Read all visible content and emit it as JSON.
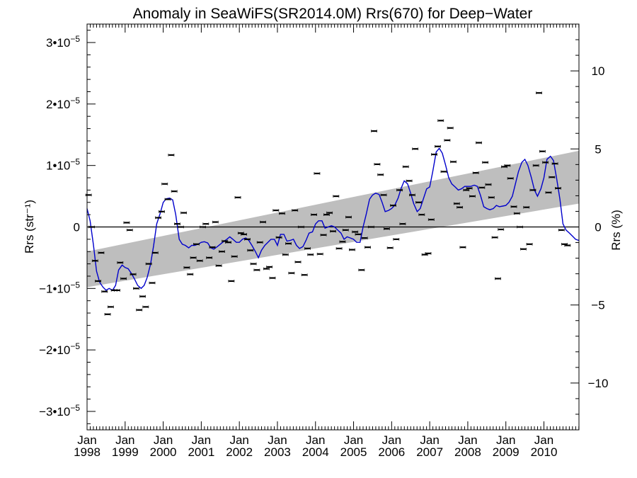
{
  "chart_data": {
    "type": "scatter",
    "title": "Anomaly in SeaWiFS(SR2014.0M) Rrs(670) for Deep−Water",
    "ylabel_left": "Rrs (str⁻¹)",
    "ylabel_right": "Rrs (%)",
    "xlim": [
      1998.0,
      2010.92
    ],
    "ylim_left": [
      -3.3e-05,
      3.3e-05
    ],
    "ylim_right": [
      -13,
      13
    ],
    "x_tick_labels": [
      {
        "month": "Jan",
        "year": "1998"
      },
      {
        "month": "Jan",
        "year": "1999"
      },
      {
        "month": "Jan",
        "year": "2000"
      },
      {
        "month": "Jan",
        "year": "2001"
      },
      {
        "month": "Jan",
        "year": "2002"
      },
      {
        "month": "Jan",
        "year": "2003"
      },
      {
        "month": "Jan",
        "year": "2004"
      },
      {
        "month": "Jan",
        "year": "2005"
      },
      {
        "month": "Jan",
        "year": "2006"
      },
      {
        "month": "Jan",
        "year": "2007"
      },
      {
        "month": "Jan",
        "year": "2008"
      },
      {
        "month": "Jan",
        "year": "2009"
      },
      {
        "month": "Jan",
        "year": "2010"
      }
    ],
    "y_ticks_left": [
      {
        "value": 3e-05,
        "mant": "3•10",
        "exp": "−5"
      },
      {
        "value": 2e-05,
        "mant": "2•10",
        "exp": "−5"
      },
      {
        "value": 1e-05,
        "mant": "1•10",
        "exp": "−5"
      },
      {
        "value": 0,
        "mant": "0",
        "exp": ""
      },
      {
        "value": -1e-05,
        "mant": "−1•10",
        "exp": "−5"
      },
      {
        "value": -2e-05,
        "mant": "−2•10",
        "exp": "−5"
      },
      {
        "value": -3e-05,
        "mant": "−3•10",
        "exp": "−5"
      }
    ],
    "y_ticks_right": [
      {
        "value": 10,
        "label": "10"
      },
      {
        "value": 5,
        "label": "5"
      },
      {
        "value": 0,
        "label": "0"
      },
      {
        "value": -5,
        "label": "−5"
      },
      {
        "value": -10,
        "label": "−10"
      }
    ],
    "trend_band": {
      "x": [
        1998.0,
        2010.92
      ],
      "upper": [
        -4e-06,
        1.24e-05
      ],
      "lower": [
        -9.8e-06,
        3.8e-06
      ],
      "color": "#bebebe"
    },
    "monthly_points": [
      [
        1998.04,
        5.2e-06
      ],
      [
        1998.12,
        0.0
      ],
      [
        1998.21,
        -5.5e-06
      ],
      [
        1998.29,
        -8.8e-06
      ],
      [
        1998.37,
        -4.2e-06
      ],
      [
        1998.46,
        -1.05e-05
      ],
      [
        1998.54,
        -1.42e-05
      ],
      [
        1998.62,
        -1.3e-05
      ],
      [
        1998.71,
        -1.03e-05
      ],
      [
        1998.79,
        -1.03e-05
      ],
      [
        1998.87,
        -5.8e-06
      ],
      [
        1998.96,
        -8.4e-06
      ],
      [
        1999.04,
        7e-07
      ],
      [
        1999.12,
        -5e-07
      ],
      [
        1999.21,
        -7.7e-06
      ],
      [
        1999.29,
        -1e-05
      ],
      [
        1999.37,
        -1.35e-05
      ],
      [
        1999.46,
        -1.13e-05
      ],
      [
        1999.54,
        -1.3e-05
      ],
      [
        1999.62,
        -6e-06
      ],
      [
        1999.71,
        -9.1e-06
      ],
      [
        1999.79,
        -4.2e-06
      ],
      [
        1999.87,
        1.5e-06
      ],
      [
        1999.96,
        2.5e-06
      ],
      [
        2000.04,
        7e-06
      ],
      [
        2000.12,
        4.5e-06
      ],
      [
        2000.21,
        1.17e-05
      ],
      [
        2000.29,
        5.8e-06
      ],
      [
        2000.37,
        5e-07
      ],
      [
        2000.46,
        0.0
      ],
      [
        2000.54,
        2.3e-06
      ],
      [
        2000.62,
        -6.6e-06
      ],
      [
        2000.71,
        -7.7e-06
      ],
      [
        2000.79,
        -5e-06
      ],
      [
        2000.87,
        -2.8e-06
      ],
      [
        2000.96,
        -5.5e-06
      ],
      [
        2001.04,
        0.0
      ],
      [
        2001.12,
        5e-07
      ],
      [
        2001.21,
        -5e-06
      ],
      [
        2001.29,
        -3.3e-06
      ],
      [
        2001.37,
        8e-07
      ],
      [
        2001.46,
        -6.3e-06
      ],
      [
        2001.54,
        -4e-06
      ],
      [
        2001.62,
        -2.3e-06
      ],
      [
        2001.71,
        -2.5e-06
      ],
      [
        2001.79,
        -8.8e-06
      ],
      [
        2001.87,
        -4.8e-06
      ],
      [
        2001.96,
        4.8e-06
      ],
      [
        2002.04,
        -1e-06
      ],
      [
        2002.12,
        -1.2e-06
      ],
      [
        2002.21,
        -2e-06
      ],
      [
        2002.29,
        -3.8e-06
      ],
      [
        2002.37,
        -6e-06
      ],
      [
        2002.46,
        -7e-06
      ],
      [
        2002.54,
        -2.5e-06
      ],
      [
        2002.62,
        8e-07
      ],
      [
        2002.71,
        -6.8e-06
      ],
      [
        2002.79,
        -6.5e-06
      ],
      [
        2002.87,
        -8.3e-06
      ],
      [
        2002.96,
        2.7e-06
      ],
      [
        2003.04,
        -1.7e-06
      ],
      [
        2003.12,
        2.2e-06
      ],
      [
        2003.21,
        -4.5e-06
      ],
      [
        2003.29,
        -2.7e-06
      ],
      [
        2003.37,
        -7.5e-06
      ],
      [
        2003.46,
        2.7e-06
      ],
      [
        2003.54,
        -5.7e-06
      ],
      [
        2003.62,
        0.0
      ],
      [
        2003.71,
        -7.8e-06
      ],
      [
        2003.79,
        -3.5e-06
      ],
      [
        2003.87,
        -4.5e-06
      ],
      [
        2003.96,
        2e-06
      ],
      [
        2004.04,
        8.7e-06
      ],
      [
        2004.12,
        -4.4e-06
      ],
      [
        2004.21,
        -1.3e-06
      ],
      [
        2004.29,
        2e-06
      ],
      [
        2004.37,
        2.3e-06
      ],
      [
        2004.46,
        -7e-07
      ],
      [
        2004.54,
        5e-06
      ],
      [
        2004.62,
        -3.5e-06
      ],
      [
        2004.71,
        -2.4e-06
      ],
      [
        2004.79,
        -5e-07
      ],
      [
        2004.87,
        1.6e-06
      ],
      [
        2004.96,
        -3.7e-06
      ],
      [
        2005.04,
        -8e-07
      ],
      [
        2005.12,
        -1.2e-06
      ],
      [
        2005.21,
        -7e-06
      ],
      [
        2005.29,
        -1.8e-06
      ],
      [
        2005.37,
        -3.3e-06
      ],
      [
        2005.46,
        0.0
      ],
      [
        2005.54,
        1.56e-05
      ],
      [
        2005.62,
        1.02e-05
      ],
      [
        2005.71,
        8.5e-06
      ],
      [
        2005.79,
        5.2e-06
      ],
      [
        2005.87,
        -3e-07
      ],
      [
        2005.96,
        -3.4e-06
      ],
      [
        2006.04,
        3.5e-06
      ],
      [
        2006.12,
        -2e-06
      ],
      [
        2006.21,
        6e-06
      ],
      [
        2006.29,
        5e-07
      ],
      [
        2006.37,
        9.8e-06
      ],
      [
        2006.46,
        7.5e-06
      ],
      [
        2006.54,
        5.2e-06
      ],
      [
        2006.62,
        1.27e-05
      ],
      [
        2006.71,
        4e-06
      ],
      [
        2006.79,
        2e-06
      ],
      [
        2006.87,
        -4.5e-06
      ],
      [
        2006.96,
        -4.3e-06
      ],
      [
        2007.04,
        1.2e-06
      ],
      [
        2007.12,
        1.18e-05
      ],
      [
        2007.21,
        1.31e-05
      ],
      [
        2007.29,
        1.73e-05
      ],
      [
        2007.37,
        9e-06
      ],
      [
        2007.46,
        1.41e-05
      ],
      [
        2007.54,
        1.61e-05
      ],
      [
        2007.62,
        1.06e-05
      ],
      [
        2007.71,
        3.8e-06
      ],
      [
        2007.79,
        3.2e-06
      ],
      [
        2007.87,
        -3.3e-06
      ],
      [
        2007.96,
        6e-06
      ],
      [
        2008.04,
        6.3e-06
      ],
      [
        2008.12,
        5e-06
      ],
      [
        2008.21,
        8.8e-06
      ],
      [
        2008.29,
        1.37e-05
      ],
      [
        2008.37,
        6.4e-06
      ],
      [
        2008.46,
        1.05e-05
      ],
      [
        2008.54,
        6.9e-06
      ],
      [
        2008.62,
        4.8e-06
      ],
      [
        2008.71,
        -1.7e-06
      ],
      [
        2008.79,
        -8.4e-06
      ],
      [
        2008.87,
        -4e-07
      ],
      [
        2008.96,
        9.8e-06
      ],
      [
        2009.04,
        1e-05
      ],
      [
        2009.12,
        7.9e-06
      ],
      [
        2009.21,
        3.3e-06
      ],
      [
        2009.29,
        2.2e-06
      ],
      [
        2009.37,
        0.0
      ],
      [
        2009.46,
        -3.6e-06
      ],
      [
        2009.54,
        3.2e-06
      ],
      [
        2009.62,
        -2.8e-06
      ],
      [
        2009.71,
        6e-06
      ],
      [
        2009.79,
        1e-05
      ],
      [
        2009.87,
        2.18e-05
      ],
      [
        2009.96,
        1.23e-05
      ],
      [
        2010.04,
        1.05e-05
      ],
      [
        2010.12,
        5.6e-06
      ],
      [
        2010.21,
        8.1e-06
      ],
      [
        2010.29,
        1.03e-05
      ],
      [
        2010.37,
        6.3e-06
      ],
      [
        2010.46,
        -5e-07
      ],
      [
        2010.54,
        -2.8e-06
      ],
      [
        2010.62,
        -3e-06
      ]
    ],
    "smoothed_line": {
      "color": "#0000cc",
      "points": [
        [
          1998.0,
          3e-06
        ],
        [
          1998.08,
          1e-06
        ],
        [
          1998.17,
          -3e-06
        ],
        [
          1998.25,
          -7.2e-06
        ],
        [
          1998.33,
          -9e-06
        ],
        [
          1998.42,
          -9.8e-06
        ],
        [
          1998.5,
          -1.03e-05
        ],
        [
          1998.58,
          -1e-05
        ],
        [
          1998.67,
          -1.03e-05
        ],
        [
          1998.75,
          -9.5e-06
        ],
        [
          1998.83,
          -7e-06
        ],
        [
          1998.92,
          -6.2e-06
        ],
        [
          1999.0,
          -6.6e-06
        ],
        [
          1999.08,
          -6.8e-06
        ],
        [
          1999.17,
          -7.6e-06
        ],
        [
          1999.25,
          -8.5e-06
        ],
        [
          1999.33,
          -9.5e-06
        ],
        [
          1999.42,
          -1e-05
        ],
        [
          1999.5,
          -9.5e-06
        ],
        [
          1999.58,
          -8.2e-06
        ],
        [
          1999.67,
          -6e-06
        ],
        [
          1999.75,
          -3e-06
        ],
        [
          1999.83,
          5e-07
        ],
        [
          1999.92,
          2.2e-06
        ],
        [
          2000.0,
          4e-06
        ],
        [
          2000.08,
          4.6e-06
        ],
        [
          2000.17,
          4.7e-06
        ],
        [
          2000.25,
          4.4e-06
        ],
        [
          2000.33,
          2e-06
        ],
        [
          2000.42,
          -2e-06
        ],
        [
          2000.5,
          -2.8e-06
        ],
        [
          2000.58,
          -3e-06
        ],
        [
          2000.67,
          -3.4e-06
        ],
        [
          2000.75,
          -3e-06
        ],
        [
          2000.83,
          -3e-06
        ],
        [
          2000.92,
          -2.8e-06
        ],
        [
          2001.0,
          -2.5e-06
        ],
        [
          2001.08,
          -2.4e-06
        ],
        [
          2001.17,
          -2.6e-06
        ],
        [
          2001.25,
          -3.4e-06
        ],
        [
          2001.33,
          -3.6e-06
        ],
        [
          2001.42,
          -3.2e-06
        ],
        [
          2001.5,
          -2.8e-06
        ],
        [
          2001.58,
          -2.4e-06
        ],
        [
          2001.67,
          -2e-06
        ],
        [
          2001.75,
          -1.6e-06
        ],
        [
          2001.83,
          -2e-06
        ],
        [
          2001.92,
          -2.5e-06
        ],
        [
          2002.0,
          -2.5e-06
        ],
        [
          2002.08,
          -2e-06
        ],
        [
          2002.17,
          -1.8e-06
        ],
        [
          2002.25,
          -2.2e-06
        ],
        [
          2002.33,
          -3e-06
        ],
        [
          2002.42,
          -4e-06
        ],
        [
          2002.5,
          -5e-06
        ],
        [
          2002.58,
          -3.8e-06
        ],
        [
          2002.67,
          -3e-06
        ],
        [
          2002.75,
          -2.5e-06
        ],
        [
          2002.83,
          -2e-06
        ],
        [
          2002.92,
          -2e-06
        ],
        [
          2003.0,
          -3e-06
        ],
        [
          2003.08,
          -1.2e-06
        ],
        [
          2003.17,
          -1.2e-06
        ],
        [
          2003.25,
          -2.3e-06
        ],
        [
          2003.33,
          -2.2e-06
        ],
        [
          2003.42,
          -2e-06
        ],
        [
          2003.5,
          -3e-06
        ],
        [
          2003.58,
          -3.5e-06
        ],
        [
          2003.67,
          -3.2e-06
        ],
        [
          2003.75,
          -2.2e-06
        ],
        [
          2003.83,
          -1e-06
        ],
        [
          2003.92,
          -8e-07
        ],
        [
          2004.0,
          5e-07
        ],
        [
          2004.08,
          1e-06
        ],
        [
          2004.17,
          1e-06
        ],
        [
          2004.25,
          -2e-07
        ],
        [
          2004.33,
          0.0
        ],
        [
          2004.42,
          2e-07
        ],
        [
          2004.5,
          0.0
        ],
        [
          2004.58,
          -5e-07
        ],
        [
          2004.67,
          -1e-06
        ],
        [
          2004.75,
          -2e-06
        ],
        [
          2004.83,
          -1.6e-06
        ],
        [
          2004.92,
          -1.8e-06
        ],
        [
          2005.0,
          -2e-06
        ],
        [
          2005.08,
          -2.5e-06
        ],
        [
          2005.17,
          -2.5e-06
        ],
        [
          2005.25,
          0.0
        ],
        [
          2005.33,
          2e-06
        ],
        [
          2005.42,
          4.5e-06
        ],
        [
          2005.5,
          5.2e-06
        ],
        [
          2005.58,
          5.5e-06
        ],
        [
          2005.67,
          5.3e-06
        ],
        [
          2005.75,
          4e-06
        ],
        [
          2005.83,
          2.5e-06
        ],
        [
          2005.92,
          2.7e-06
        ],
        [
          2006.0,
          3e-06
        ],
        [
          2006.08,
          3.5e-06
        ],
        [
          2006.17,
          4.7e-06
        ],
        [
          2006.25,
          6.3e-06
        ],
        [
          2006.33,
          7.5e-06
        ],
        [
          2006.42,
          7e-06
        ],
        [
          2006.5,
          5.5e-06
        ],
        [
          2006.58,
          3.8e-06
        ],
        [
          2006.67,
          2.5e-06
        ],
        [
          2006.75,
          3e-06
        ],
        [
          2006.83,
          4.5e-06
        ],
        [
          2006.92,
          6.2e-06
        ],
        [
          2007.0,
          6.5e-06
        ],
        [
          2007.08,
          9e-06
        ],
        [
          2007.17,
          1.22e-05
        ],
        [
          2007.25,
          1.28e-05
        ],
        [
          2007.33,
          1.2e-05
        ],
        [
          2007.42,
          1e-05
        ],
        [
          2007.5,
          8e-06
        ],
        [
          2007.58,
          7e-06
        ],
        [
          2007.67,
          6.5e-06
        ],
        [
          2007.75,
          6e-06
        ],
        [
          2007.83,
          6.2e-06
        ],
        [
          2007.92,
          6.6e-06
        ],
        [
          2008.0,
          6.6e-06
        ],
        [
          2008.08,
          6.6e-06
        ],
        [
          2008.17,
          6.8e-06
        ],
        [
          2008.25,
          6.6e-06
        ],
        [
          2008.33,
          5.2e-06
        ],
        [
          2008.42,
          3.3e-06
        ],
        [
          2008.5,
          3e-06
        ],
        [
          2008.58,
          2.8e-06
        ],
        [
          2008.67,
          3e-06
        ],
        [
          2008.75,
          3.5e-06
        ],
        [
          2008.83,
          3.3e-06
        ],
        [
          2008.92,
          3.4e-06
        ],
        [
          2009.0,
          3.5e-06
        ],
        [
          2009.08,
          4e-06
        ],
        [
          2009.17,
          5e-06
        ],
        [
          2009.25,
          7e-06
        ],
        [
          2009.33,
          9e-06
        ],
        [
          2009.42,
          1.05e-05
        ],
        [
          2009.5,
          1.1e-05
        ],
        [
          2009.58,
          1e-05
        ],
        [
          2009.67,
          8e-06
        ],
        [
          2009.75,
          6e-06
        ],
        [
          2009.83,
          5e-06
        ],
        [
          2009.92,
          6.2e-06
        ],
        [
          2010.0,
          8e-06
        ],
        [
          2010.08,
          1.1e-05
        ],
        [
          2010.17,
          1.15e-05
        ],
        [
          2010.25,
          1.08e-05
        ],
        [
          2010.33,
          8e-06
        ],
        [
          2010.42,
          4.5e-06
        ],
        [
          2010.5,
          5e-07
        ],
        [
          2010.58,
          -5e-07
        ],
        [
          2010.67,
          -1e-06
        ],
        [
          2010.75,
          -1.5e-06
        ],
        [
          2010.83,
          -2e-06
        ],
        [
          2010.92,
          -2.2e-06
        ]
      ]
    },
    "grid": false,
    "zero_line": true
  }
}
